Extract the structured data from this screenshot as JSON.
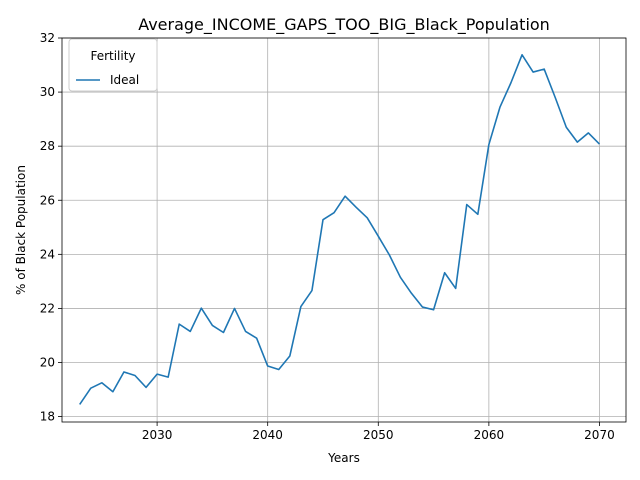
{
  "chart_data": {
    "type": "line",
    "title": "Average_INCOME_GAPS_TOO_BIG_Black_Population",
    "xlabel": "Years",
    "ylabel": "% of Black Population",
    "xlim": [
      2021.4,
      2072.4
    ],
    "ylim": [
      17.8,
      32.0
    ],
    "xticks": [
      2030,
      2040,
      2050,
      2060,
      2070
    ],
    "yticks": [
      18,
      20,
      22,
      24,
      26,
      28,
      30,
      32
    ],
    "grid": true,
    "legend": {
      "title": "Fertility",
      "placement": "top-left"
    },
    "series": [
      {
        "name": "Ideal",
        "color": "#1f77b4",
        "x": [
          2023,
          2024,
          2025,
          2026,
          2027,
          2028,
          2029,
          2030,
          2031,
          2032,
          2033,
          2034,
          2035,
          2036,
          2037,
          2038,
          2039,
          2040,
          2041,
          2042,
          2043,
          2044,
          2045,
          2046,
          2047,
          2048,
          2049,
          2050,
          2051,
          2052,
          2053,
          2054,
          2055,
          2056,
          2057,
          2058,
          2059,
          2060,
          2061,
          2062,
          2063,
          2064,
          2065,
          2066,
          2067,
          2068,
          2069,
          2070
        ],
        "y": [
          18.45,
          19.05,
          19.25,
          18.92,
          19.65,
          19.52,
          19.08,
          19.57,
          19.46,
          21.42,
          21.15,
          22.01,
          21.37,
          21.11,
          22.0,
          21.15,
          20.9,
          19.87,
          19.74,
          20.24,
          22.07,
          22.66,
          25.28,
          25.54,
          26.15,
          25.74,
          25.35,
          24.67,
          23.98,
          23.15,
          22.56,
          22.05,
          21.95,
          23.32,
          22.74,
          25.84,
          25.48,
          28.06,
          29.44,
          30.35,
          31.38,
          30.74,
          30.85,
          29.8,
          28.7,
          28.15,
          28.49,
          28.08
        ]
      }
    ]
  }
}
